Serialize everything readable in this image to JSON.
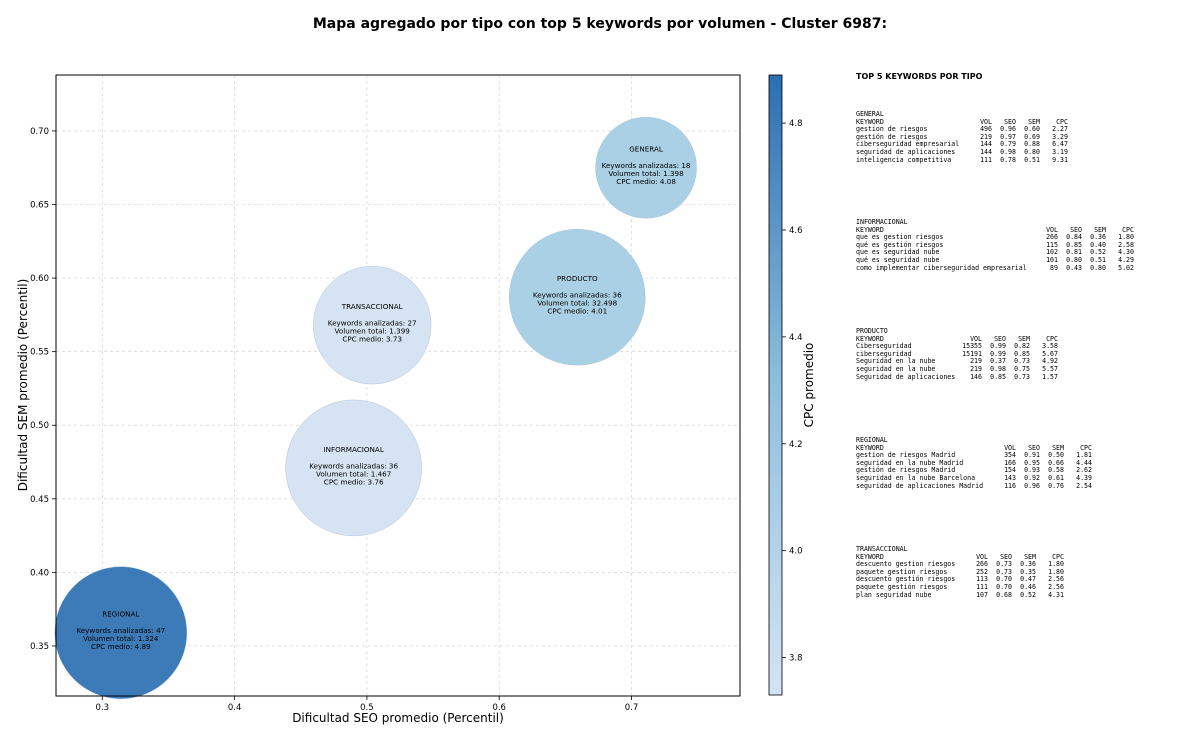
{
  "chart_data": {
    "type": "scatter",
    "title": "Mapa agregado por tipo con top 5 keywords por volumen - Cluster 6987:",
    "xlabel": "Dificultad SEO promedio (Percentil)",
    "ylabel": "Dificultad SEM promedio (Percentil)",
    "xlim": [
      0.265,
      0.782
    ],
    "ylim": [
      0.316,
      0.738
    ],
    "xticks": [
      "0.3",
      "0.4",
      "0.5",
      "0.6",
      "0.7"
    ],
    "xtick_values": [
      0.3,
      0.4,
      0.5,
      0.6,
      0.7
    ],
    "yticks": [
      "0.35",
      "0.40",
      "0.45",
      "0.50",
      "0.55",
      "0.60",
      "0.65",
      "0.70"
    ],
    "ytick_values": [
      0.35,
      0.4,
      0.45,
      0.5,
      0.55,
      0.6,
      0.65,
      0.7
    ],
    "grid": true,
    "colorbar": {
      "label": "CPC promedio",
      "range": [
        3.73,
        4.89
      ],
      "ticks": [
        "3.8",
        "4.0",
        "4.2",
        "4.4",
        "4.6",
        "4.8"
      ],
      "tick_values": [
        3.8,
        4.0,
        4.2,
        4.4,
        4.6,
        4.8
      ],
      "color_low": "#d4e3f3",
      "color_high": "#2b6fb2"
    },
    "points": [
      {
        "tipo": "GENERAL",
        "x": 0.711,
        "y": 0.675,
        "keywords": 18,
        "volume": 1398,
        "cpc": 4.08,
        "lines": [
          "GENERAL",
          "",
          "Keywords analizadas: 18",
          "Volumen total: 1.398",
          "CPC medio: 4.08"
        ],
        "color": "#a3cce3"
      },
      {
        "tipo": "PRODUCTO",
        "x": 0.659,
        "y": 0.587,
        "keywords": 36,
        "volume": 32498,
        "cpc": 4.01,
        "lines": [
          "PRODUCTO",
          "",
          "Keywords analizadas: 36",
          "Volumen total: 32.498",
          "CPC medio: 4.01"
        ],
        "color": "#a3cce3"
      },
      {
        "tipo": "TRANSACCIONAL",
        "x": 0.504,
        "y": 0.568,
        "keywords": 27,
        "volume": 1399,
        "cpc": 3.73,
        "lines": [
          "TRANSACCIONAL",
          "",
          "Keywords analizadas: 27",
          "Volumen total: 1.399",
          "CPC medio: 3.73"
        ],
        "color": "#d2e1f1"
      },
      {
        "tipo": "INFORMACIONAL",
        "x": 0.49,
        "y": 0.471,
        "keywords": 36,
        "volume": 1467,
        "cpc": 3.76,
        "lines": [
          "INFORMACIONAL",
          "",
          "Keywords analizadas: 36",
          "Volumen total: 1.467",
          "CPC medio: 3.76"
        ],
        "color": "#d2e1f1"
      },
      {
        "tipo": "REGIONAL",
        "x": 0.314,
        "y": 0.359,
        "keywords": 47,
        "volume": 1324,
        "cpc": 4.89,
        "lines": [
          "REGIONAL",
          "",
          "Keywords analizadas: 47",
          "Volumen total: 1.324",
          "CPC medio: 4.89"
        ],
        "color": "#2b6fb2"
      }
    ]
  },
  "side_panel": {
    "title": "TOP 5 KEYWORDS POR TIPO",
    "headers": [
      "KEYWORD",
      "VOL",
      "SEO",
      "SEM",
      "CPC"
    ],
    "groups": [
      {
        "name": "GENERAL",
        "rows": [
          [
            "gestion de riesgos",
            "496",
            "0.96",
            "0.60",
            "2.27"
          ],
          [
            "gestión de riesgos",
            "219",
            "0.97",
            "0.69",
            "3.29"
          ],
          [
            "ciberseguridad empresarial",
            "144",
            "0.79",
            "0.88",
            "6.47"
          ],
          [
            "seguridad de aplicaciones",
            "144",
            "0.98",
            "0.80",
            "3.19"
          ],
          [
            "inteligencia competitiva",
            "111",
            "0.78",
            "0.51",
            "9.31"
          ]
        ]
      },
      {
        "name": "INFORMACIONAL",
        "rows": [
          [
            "que es gestion riesgos",
            "266",
            "0.84",
            "0.36",
            "1.80"
          ],
          [
            "qué es gestión riesgos",
            "115",
            "0.85",
            "0.40",
            "2.58"
          ],
          [
            "que es seguridad nube",
            "102",
            "0.81",
            "0.52",
            "4.30"
          ],
          [
            "qué es seguridad nube",
            "101",
            "0.80",
            "0.51",
            "4.29"
          ],
          [
            "como implementar ciberseguridad empresarial",
            "89",
            "0.43",
            "0.80",
            "5.02"
          ]
        ]
      },
      {
        "name": "PRODUCTO",
        "rows": [
          [
            "Ciberseguridad",
            "15355",
            "0.99",
            "0.82",
            "3.58"
          ],
          [
            "ciberseguridad",
            "15191",
            "0.99",
            "0.85",
            "5.67"
          ],
          [
            "Seguridad en la nube",
            "219",
            "0.37",
            "0.73",
            "4.92"
          ],
          [
            "seguridad en la nube",
            "219",
            "0.98",
            "0.75",
            "5.57"
          ],
          [
            "Seguridad de aplicaciones",
            "146",
            "0.85",
            "0.73",
            "1.57"
          ]
        ]
      },
      {
        "name": "REGIONAL",
        "rows": [
          [
            "gestion de riesgos Madrid",
            "354",
            "0.91",
            "0.50",
            "1.81"
          ],
          [
            "seguridad en la nube Madrid",
            "166",
            "0.95",
            "0.66",
            "4.44"
          ],
          [
            "gestión de riesgos Madrid",
            "154",
            "0.93",
            "0.58",
            "2.62"
          ],
          [
            "seguridad en la nube Barcelona",
            "143",
            "0.92",
            "0.61",
            "4.39"
          ],
          [
            "seguridad de aplicaciones Madrid",
            "116",
            "0.96",
            "0.76",
            "2.54"
          ]
        ]
      },
      {
        "name": "TRANSACCIONAL",
        "rows": [
          [
            "descuento gestion riesgos",
            "266",
            "0.73",
            "0.36",
            "1.80"
          ],
          [
            "paquete gestion riesgos",
            "252",
            "0.73",
            "0.35",
            "1.80"
          ],
          [
            "descuento gestión riesgos",
            "113",
            "0.70",
            "0.47",
            "2.56"
          ],
          [
            "paquete gestión riesgos",
            "111",
            "0.70",
            "0.46",
            "2.56"
          ],
          [
            "plan seguridad nube",
            "107",
            "0.68",
            "0.52",
            "4.31"
          ]
        ]
      }
    ]
  }
}
